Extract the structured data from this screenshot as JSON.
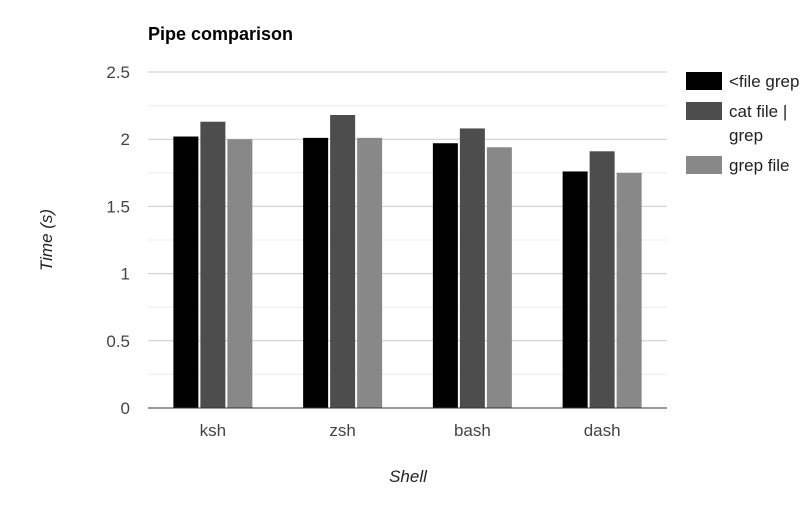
{
  "chart_data": {
    "type": "bar",
    "title": "Pipe comparison",
    "xlabel": "Shell",
    "ylabel": "Time (s)",
    "categories": [
      "ksh",
      "zsh",
      "bash",
      "dash"
    ],
    "series": [
      {
        "name": "<file grep",
        "values": [
          2.02,
          2.01,
          1.97,
          1.76
        ],
        "color": "#000000"
      },
      {
        "name": "cat file | grep",
        "values": [
          2.13,
          2.18,
          2.08,
          1.91
        ],
        "color": "#4d4d4d"
      },
      {
        "name": "grep file",
        "values": [
          2.0,
          2.01,
          1.94,
          1.75
        ],
        "color": "#888888"
      }
    ],
    "ylim": [
      0,
      2.5
    ],
    "yticks": [
      "0",
      "0.5",
      "1",
      "1.5",
      "2",
      "2.5"
    ],
    "grid": true,
    "legend_position": "right"
  }
}
